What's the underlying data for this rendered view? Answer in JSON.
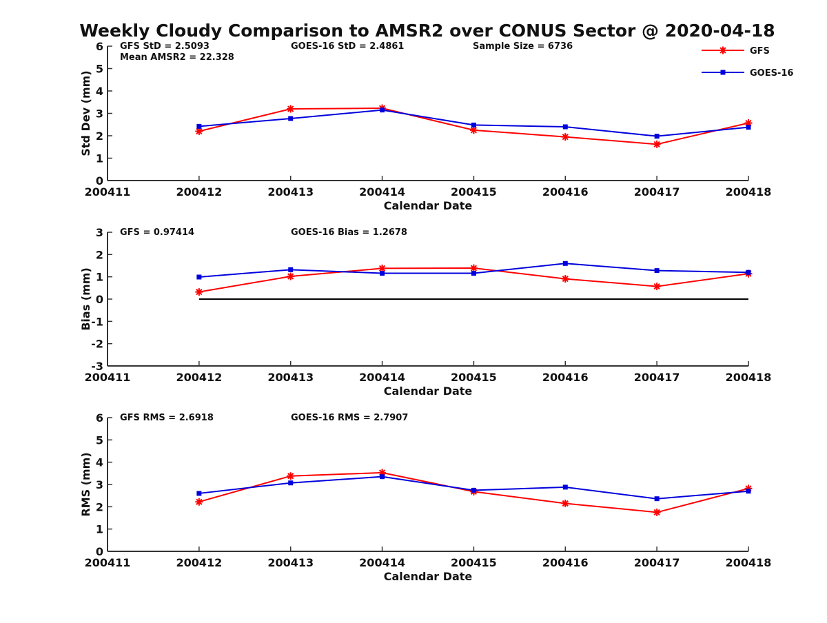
{
  "title": "Weekly Cloudy Comparison to AMSR2 over CONUS Sector @ 2020-04-18",
  "colors": {
    "gfs": "#ff0000",
    "goes": "#0000dd",
    "axis": "#333333",
    "zero": "#000000"
  },
  "legend": {
    "placement": "top-right",
    "entries": [
      "GFS",
      "GOES-16"
    ]
  },
  "chart_data": [
    {
      "type": "line",
      "id": "std",
      "ylabel": "Std Dev (mm)",
      "xlabel": "Calendar Date",
      "ylim": [
        0,
        6
      ],
      "yticks": [
        0,
        1,
        2,
        3,
        4,
        5,
        6
      ],
      "xticks": [
        "200411",
        "200412",
        "200413",
        "200414",
        "200415",
        "200416",
        "200417",
        "200418"
      ],
      "x": [
        "200412",
        "200413",
        "200414",
        "200415",
        "200416",
        "200417",
        "200418"
      ],
      "annotations": [
        "GFS StD = 2.5093",
        "GOES-16 StD = 2.4861",
        "Sample Size = 6736",
        "Mean AMSR2 = 22.328"
      ],
      "zero_line": false,
      "series": [
        {
          "name": "GFS",
          "marker": "asterisk",
          "values": [
            2.2,
            3.2,
            3.23,
            2.25,
            1.95,
            1.62,
            2.57
          ]
        },
        {
          "name": "GOES-16",
          "marker": "square",
          "values": [
            2.42,
            2.77,
            3.15,
            2.48,
            2.4,
            1.98,
            2.38
          ]
        }
      ]
    },
    {
      "type": "line",
      "id": "bias",
      "ylabel": "Bias (mm)",
      "xlabel": "Calendar Date",
      "ylim": [
        -3,
        3
      ],
      "yticks": [
        -3,
        -2,
        -1,
        0,
        1,
        2,
        3
      ],
      "xticks": [
        "200411",
        "200412",
        "200413",
        "200414",
        "200415",
        "200416",
        "200417",
        "200418"
      ],
      "x": [
        "200412",
        "200413",
        "200414",
        "200415",
        "200416",
        "200417",
        "200418"
      ],
      "annotations": [
        "GFS = 0.97414",
        "GOES-16 Bias  = 1.2678"
      ],
      "zero_line": true,
      "series": [
        {
          "name": "GFS",
          "marker": "asterisk",
          "values": [
            0.32,
            1.02,
            1.38,
            1.39,
            0.91,
            0.57,
            1.14
          ]
        },
        {
          "name": "GOES-16",
          "marker": "square",
          "values": [
            0.99,
            1.32,
            1.16,
            1.16,
            1.6,
            1.28,
            1.2
          ]
        }
      ]
    },
    {
      "type": "line",
      "id": "rms",
      "ylabel": "RMS (mm)",
      "xlabel": "Calendar Date",
      "ylim": [
        0,
        6
      ],
      "yticks": [
        0,
        1,
        2,
        3,
        4,
        5,
        6
      ],
      "xticks": [
        "200411",
        "200412",
        "200413",
        "200414",
        "200415",
        "200416",
        "200417",
        "200418"
      ],
      "x": [
        "200412",
        "200413",
        "200414",
        "200415",
        "200416",
        "200417",
        "200418"
      ],
      "annotations": [
        "GFS RMS = 2.6918",
        "GOES-16 RMS = 2.7907"
      ],
      "zero_line": false,
      "series": [
        {
          "name": "GFS",
          "marker": "asterisk",
          "values": [
            2.22,
            3.38,
            3.53,
            2.68,
            2.15,
            1.75,
            2.82
          ]
        },
        {
          "name": "GOES-16",
          "marker": "square",
          "values": [
            2.6,
            3.07,
            3.35,
            2.74,
            2.88,
            2.36,
            2.7
          ]
        }
      ]
    }
  ]
}
